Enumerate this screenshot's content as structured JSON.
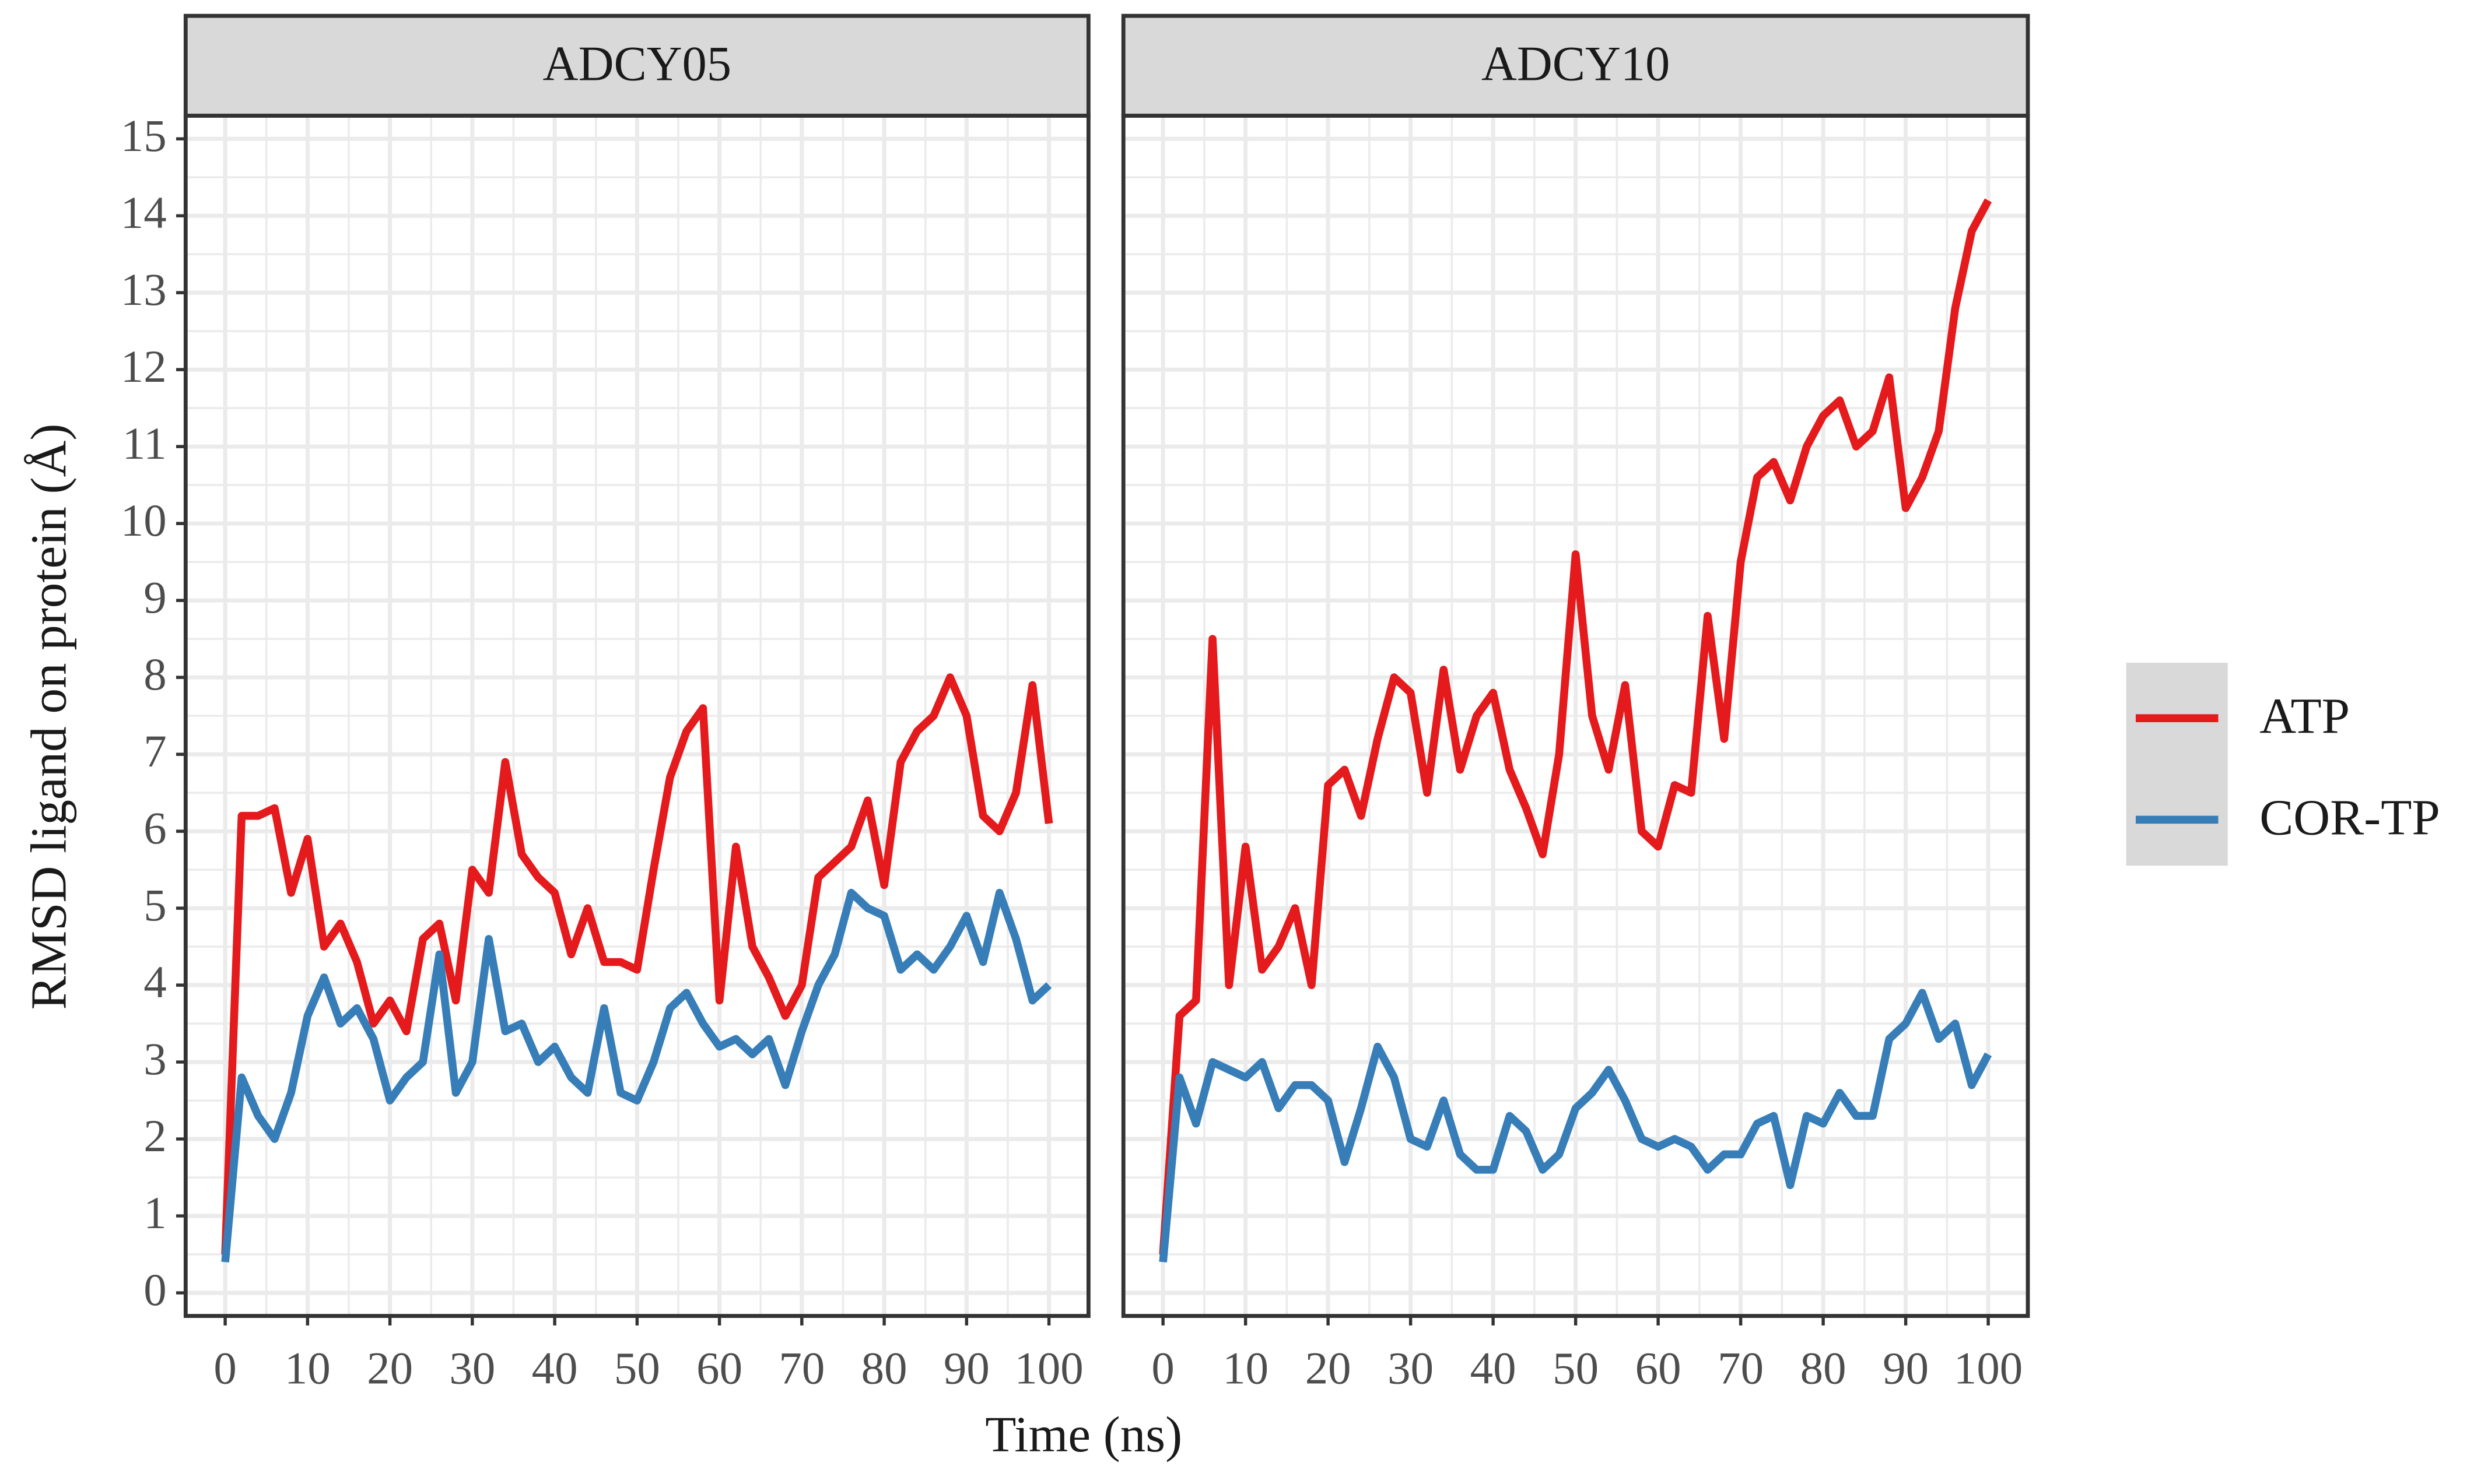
{
  "chart_data": [
    {
      "type": "line",
      "title": "ADCY05",
      "x_label": "Time (ns)",
      "y_label": "RMSD ligand on protein (Å)",
      "x": [
        0,
        2,
        4,
        6,
        8,
        10,
        12,
        14,
        16,
        18,
        20,
        22,
        24,
        26,
        28,
        30,
        32,
        34,
        36,
        38,
        40,
        42,
        44,
        46,
        48,
        50,
        52,
        54,
        56,
        58,
        60,
        62,
        64,
        66,
        68,
        70,
        72,
        74,
        76,
        78,
        80,
        82,
        84,
        86,
        88,
        90,
        92,
        94,
        96,
        98,
        100
      ],
      "series": [
        {
          "name": "ATP",
          "color": "#e41a1c",
          "values": [
            0.5,
            6.2,
            6.2,
            6.3,
            5.2,
            5.9,
            4.5,
            4.8,
            4.3,
            3.5,
            3.8,
            3.4,
            4.6,
            4.8,
            3.8,
            5.5,
            5.2,
            6.9,
            5.7,
            5.4,
            5.2,
            4.4,
            5.0,
            4.3,
            4.3,
            4.2,
            5.5,
            6.7,
            7.3,
            7.6,
            3.8,
            5.8,
            4.5,
            4.1,
            3.6,
            4.0,
            5.4,
            5.6,
            5.8,
            6.4,
            5.3,
            6.9,
            7.3,
            7.5,
            8.0,
            7.5,
            6.2,
            6.0,
            6.5,
            7.9,
            6.1
          ]
        },
        {
          "name": "COR-TP",
          "color": "#377eb8",
          "values": [
            0.4,
            2.8,
            2.3,
            2.0,
            2.6,
            3.6,
            4.1,
            3.5,
            3.7,
            3.3,
            2.5,
            2.8,
            3.0,
            4.4,
            2.6,
            3.0,
            4.6,
            3.4,
            3.5,
            3.0,
            3.2,
            2.8,
            2.6,
            3.7,
            2.6,
            2.5,
            3.0,
            3.7,
            3.9,
            3.5,
            3.2,
            3.3,
            3.1,
            3.3,
            2.7,
            3.4,
            4.0,
            4.4,
            5.2,
            5.0,
            4.9,
            4.2,
            4.4,
            4.2,
            4.5,
            4.9,
            4.3,
            5.2,
            4.6,
            3.8,
            4.0
          ]
        }
      ],
      "xlim": [
        -4.8,
        104.8
      ],
      "ylim": [
        -0.3,
        15.3
      ],
      "xticks": [
        0,
        10,
        20,
        30,
        40,
        50,
        60,
        70,
        80,
        90,
        100
      ],
      "yticks": [
        0,
        1,
        2,
        3,
        4,
        5,
        6,
        7,
        8,
        9,
        10,
        11,
        12,
        13,
        14,
        15
      ],
      "grid": true
    },
    {
      "type": "line",
      "title": "ADCY10",
      "x": [
        0,
        2,
        4,
        6,
        8,
        10,
        12,
        14,
        16,
        18,
        20,
        22,
        24,
        26,
        28,
        30,
        32,
        34,
        36,
        38,
        40,
        42,
        44,
        46,
        48,
        50,
        52,
        54,
        56,
        58,
        60,
        62,
        64,
        66,
        68,
        70,
        72,
        74,
        76,
        78,
        80,
        82,
        84,
        86,
        88,
        90,
        92,
        94,
        96,
        98,
        100
      ],
      "series": [
        {
          "name": "ATP",
          "color": "#e41a1c",
          "values": [
            0.5,
            3.6,
            3.8,
            8.5,
            4.0,
            5.8,
            4.2,
            4.5,
            5.0,
            4.0,
            6.6,
            6.8,
            6.2,
            7.2,
            8.0,
            7.8,
            6.5,
            8.1,
            6.8,
            7.5,
            7.8,
            6.8,
            6.3,
            5.7,
            7.0,
            9.6,
            7.5,
            6.8,
            7.9,
            6.0,
            5.8,
            6.6,
            6.5,
            8.8,
            7.2,
            9.5,
            10.6,
            10.8,
            10.3,
            11.0,
            11.4,
            11.6,
            11.0,
            11.2,
            11.9,
            10.2,
            10.6,
            11.2,
            12.8,
            13.8,
            14.2
          ]
        },
        {
          "name": "COR-TP",
          "color": "#377eb8",
          "values": [
            0.4,
            2.8,
            2.2,
            3.0,
            2.9,
            2.8,
            3.0,
            2.4,
            2.7,
            2.7,
            2.5,
            1.7,
            2.4,
            3.2,
            2.8,
            2.0,
            1.9,
            2.5,
            1.8,
            1.6,
            1.6,
            2.3,
            2.1,
            1.6,
            1.8,
            2.4,
            2.6,
            2.9,
            2.5,
            2.0,
            1.9,
            2.0,
            1.9,
            1.6,
            1.8,
            1.8,
            2.2,
            2.3,
            1.4,
            2.3,
            2.2,
            2.6,
            2.3,
            2.3,
            3.3,
            3.5,
            3.9,
            3.3,
            3.5,
            2.7,
            3.1
          ]
        }
      ],
      "xlim": [
        -4.8,
        104.8
      ],
      "ylim": [
        -0.3,
        15.3
      ],
      "xticks": [
        0,
        10,
        20,
        30,
        40,
        50,
        60,
        70,
        80,
        90,
        100
      ],
      "yticks": [
        0,
        1,
        2,
        3,
        4,
        5,
        6,
        7,
        8,
        9,
        10,
        11,
        12,
        13,
        14,
        15
      ],
      "grid": true
    }
  ]
}
